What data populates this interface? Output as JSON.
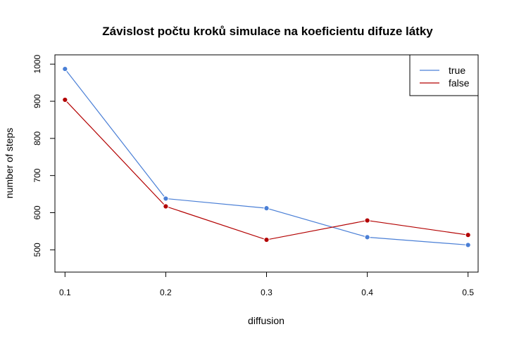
{
  "chart_data": {
    "type": "line",
    "title": "Závislost počtu kroků simulace na koeficientu difuze látky",
    "xlabel": "diffusion",
    "ylabel": "number of steps",
    "x": [
      0.1,
      0.2,
      0.3,
      0.4,
      0.5
    ],
    "x_tick_labels": [
      "0.1",
      "0.2",
      "0.3",
      "0.4",
      "0.5"
    ],
    "y_ticks": [
      500,
      600,
      700,
      800,
      900,
      1000
    ],
    "y_tick_labels": [
      "500",
      "600",
      "700",
      "800",
      "900",
      "1000"
    ],
    "xlim": [
      0.09,
      0.51
    ],
    "ylim": [
      440,
      1025
    ],
    "grid": false,
    "legend_position": "top-right",
    "series": [
      {
        "name": "true",
        "color": "#4a7fd6",
        "values": [
          987,
          638,
          612,
          534,
          513
        ]
      },
      {
        "name": "false",
        "color": "#b30000",
        "values": [
          904,
          617,
          527,
          579,
          540
        ]
      }
    ]
  }
}
